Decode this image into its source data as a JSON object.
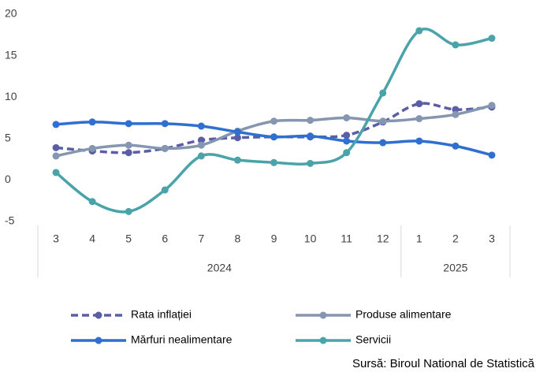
{
  "chart_data": {
    "type": "line",
    "categories": [
      "3",
      "4",
      "5",
      "6",
      "7",
      "8",
      "9",
      "10",
      "11",
      "12",
      "1",
      "2",
      "3"
    ],
    "groups": [
      {
        "label": "2024",
        "span": 10
      },
      {
        "label": "2025",
        "span": 3
      }
    ],
    "ylim": [
      -5,
      20
    ],
    "yticks": [
      -5,
      0,
      5,
      10,
      15,
      20
    ],
    "grid": false,
    "series": [
      {
        "name": "Rata inflației",
        "color": "#5b5ea6",
        "dashed": true,
        "values": [
          3.9,
          3.5,
          3.3,
          3.8,
          4.8,
          5.1,
          5.2,
          5.2,
          5.4,
          7.0,
          9.2,
          8.5,
          8.8
        ]
      },
      {
        "name": "Produse alimentare",
        "color": "#8496b0",
        "dashed": false,
        "values": [
          2.9,
          3.8,
          4.2,
          3.8,
          4.2,
          5.9,
          7.1,
          7.2,
          7.5,
          7.1,
          7.4,
          7.9,
          9.0
        ]
      },
      {
        "name": "Mărfuri nealimentare",
        "color": "#2f6fd0",
        "dashed": false,
        "values": [
          6.7,
          7.0,
          6.8,
          6.8,
          6.5,
          5.8,
          5.2,
          5.3,
          4.7,
          4.5,
          4.7,
          4.1,
          3.0
        ]
      },
      {
        "name": "Servicii",
        "color": "#4aa3a8",
        "dashed": false,
        "values": [
          0.9,
          -2.6,
          -3.8,
          -1.2,
          2.9,
          2.4,
          2.1,
          2.0,
          3.3,
          10.5,
          18.0,
          16.3,
          17.1
        ]
      }
    ],
    "source": "Sursă: Biroul National de Statistică"
  }
}
